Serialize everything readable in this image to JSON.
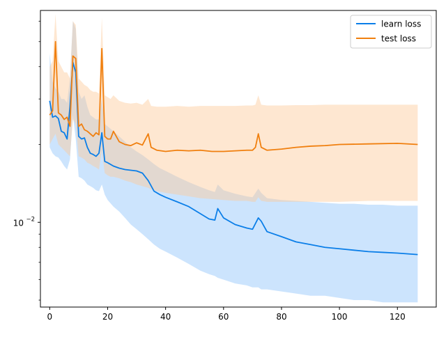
{
  "chart_data": {
    "type": "line",
    "title": "",
    "xlabel": "",
    "ylabel": "",
    "xlim": [
      -3.2,
      133.4
    ],
    "ylim": [
      0.0047,
      0.066
    ],
    "yscale": "log",
    "grid": false,
    "legend_placement": "top-right",
    "x_ticks": [
      0,
      20,
      40,
      60,
      80,
      100,
      120
    ],
    "y_major_ticks": [
      {
        "value": 0.01,
        "label": "10",
        "exponent": "−2"
      }
    ],
    "y_minor_ticks": [
      0.005,
      0.006,
      0.007,
      0.008,
      0.009,
      0.02,
      0.03,
      0.04,
      0.05,
      0.06
    ],
    "series": [
      {
        "name": "learn loss",
        "color": "#0a7ee8",
        "band_color": "#8fc3fb",
        "x": [
          0,
          1,
          2,
          3,
          4,
          5,
          6,
          7,
          8,
          9,
          10,
          11,
          12,
          13,
          14,
          15,
          16,
          17,
          18,
          19,
          20,
          22,
          24,
          26,
          28,
          30,
          32,
          34,
          36,
          38,
          40,
          44,
          48,
          52,
          55,
          57,
          58,
          60,
          64,
          68,
          70,
          72,
          73,
          75,
          80,
          85,
          90,
          95,
          100,
          105,
          110,
          115,
          120,
          127
        ],
        "mean": [
          0.0295,
          0.0255,
          0.0258,
          0.0252,
          0.0225,
          0.0222,
          0.021,
          0.028,
          0.0415,
          0.038,
          0.0215,
          0.021,
          0.0212,
          0.0195,
          0.0185,
          0.0183,
          0.018,
          0.0185,
          0.0222,
          0.0172,
          0.017,
          0.0165,
          0.0162,
          0.016,
          0.0159,
          0.0158,
          0.0155,
          0.0145,
          0.0132,
          0.0128,
          0.0125,
          0.012,
          0.0115,
          0.0108,
          0.0103,
          0.0102,
          0.0113,
          0.0104,
          0.0098,
          0.0095,
          0.0094,
          0.0104,
          0.0101,
          0.0092,
          0.0088,
          0.0084,
          0.0082,
          0.008,
          0.0079,
          0.0078,
          0.0077,
          0.00765,
          0.0076,
          0.0075
        ],
        "lower": [
          0.0195,
          0.0185,
          0.018,
          0.0178,
          0.0172,
          0.0165,
          0.016,
          0.0175,
          0.026,
          0.021,
          0.015,
          0.0148,
          0.0145,
          0.014,
          0.0138,
          0.0136,
          0.0133,
          0.0132,
          0.014,
          0.0128,
          0.0122,
          0.0115,
          0.011,
          0.0104,
          0.0098,
          0.0094,
          0.009,
          0.0086,
          0.0082,
          0.0079,
          0.0077,
          0.0073,
          0.0069,
          0.0065,
          0.0063,
          0.0062,
          0.0061,
          0.006,
          0.0058,
          0.0057,
          0.0056,
          0.0056,
          0.0055,
          0.0055,
          0.0054,
          0.0053,
          0.0052,
          0.0052,
          0.0051,
          0.005,
          0.005,
          0.0049,
          0.0049,
          0.0049
        ],
        "upper": [
          0.045,
          0.035,
          0.033,
          0.032,
          0.03,
          0.03,
          0.029,
          0.036,
          0.06,
          0.056,
          0.032,
          0.03,
          0.031,
          0.028,
          0.026,
          0.0255,
          0.025,
          0.025,
          0.03,
          0.024,
          0.0235,
          0.0225,
          0.0215,
          0.0205,
          0.0195,
          0.0188,
          0.0182,
          0.0175,
          0.0168,
          0.0162,
          0.0158,
          0.015,
          0.0143,
          0.0137,
          0.0133,
          0.0131,
          0.014,
          0.0133,
          0.0129,
          0.0126,
          0.0125,
          0.0135,
          0.013,
          0.0124,
          0.0122,
          0.0121,
          0.012,
          0.0119,
          0.0118,
          0.0118,
          0.0117,
          0.0117,
          0.0116,
          0.0116
        ]
      },
      {
        "name": "test loss",
        "color": "#f07f0e",
        "band_color": "#fdc99a",
        "x": [
          0,
          1,
          2,
          3,
          4,
          5,
          6,
          7,
          8,
          9,
          10,
          11,
          12,
          13,
          14,
          15,
          16,
          17,
          18,
          19,
          20,
          21,
          22,
          24,
          26,
          28,
          30,
          32,
          34,
          35,
          37,
          40,
          44,
          48,
          52,
          56,
          60,
          64,
          68,
          70,
          71,
          72,
          73,
          75,
          80,
          85,
          90,
          95,
          100,
          110,
          120,
          127
        ],
        "mean": [
          0.026,
          0.027,
          0.05,
          0.0265,
          0.026,
          0.025,
          0.0255,
          0.0235,
          0.044,
          0.043,
          0.0235,
          0.024,
          0.0228,
          0.0225,
          0.022,
          0.0215,
          0.0222,
          0.0218,
          0.047,
          0.0215,
          0.021,
          0.021,
          0.0225,
          0.0205,
          0.02,
          0.0198,
          0.0203,
          0.0199,
          0.022,
          0.0195,
          0.019,
          0.0188,
          0.019,
          0.0189,
          0.019,
          0.0188,
          0.0188,
          0.0189,
          0.019,
          0.019,
          0.0195,
          0.022,
          0.0195,
          0.019,
          0.0192,
          0.0195,
          0.0197,
          0.0198,
          0.02,
          0.0201,
          0.0202,
          0.02
        ],
        "lower": [
          0.02,
          0.021,
          0.022,
          0.02,
          0.0195,
          0.019,
          0.0185,
          0.018,
          0.025,
          0.024,
          0.018,
          0.0178,
          0.0175,
          0.017,
          0.0168,
          0.0165,
          0.0163,
          0.016,
          0.019,
          0.0155,
          0.0152,
          0.015,
          0.015,
          0.0148,
          0.0145,
          0.0143,
          0.014,
          0.0138,
          0.0136,
          0.0134,
          0.0132,
          0.013,
          0.0128,
          0.0126,
          0.0124,
          0.0123,
          0.0122,
          0.0121,
          0.0121,
          0.012,
          0.012,
          0.0125,
          0.0121,
          0.012,
          0.012,
          0.012,
          0.012,
          0.012,
          0.012,
          0.0121,
          0.0121,
          0.0121
        ],
        "upper": [
          0.04,
          0.042,
          0.064,
          0.042,
          0.04,
          0.038,
          0.038,
          0.036,
          0.06,
          0.058,
          0.036,
          0.035,
          0.034,
          0.0335,
          0.0325,
          0.032,
          0.032,
          0.0315,
          0.062,
          0.031,
          0.0305,
          0.03,
          0.031,
          0.0295,
          0.029,
          0.0288,
          0.029,
          0.0285,
          0.03,
          0.0282,
          0.028,
          0.028,
          0.0282,
          0.028,
          0.0282,
          0.0282,
          0.0282,
          0.0282,
          0.0283,
          0.0283,
          0.0285,
          0.031,
          0.0285,
          0.0283,
          0.0283,
          0.0284,
          0.0284,
          0.0285,
          0.0285,
          0.0285,
          0.0285,
          0.0285
        ]
      }
    ]
  }
}
